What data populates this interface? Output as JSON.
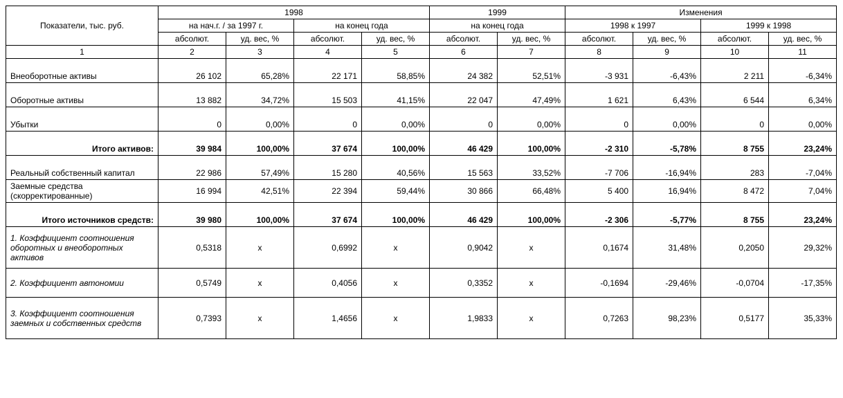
{
  "header": {
    "indicator_label": "Показатели, тыс. руб.",
    "y1998": "1998",
    "y1999": "1999",
    "changes": "Изменения",
    "begin_1997": "на нач.г. / за 1997 г.",
    "end_year": "на конец года",
    "ch_1998_1997": "1998 к 1997",
    "ch_1999_1998": "1999 к 1998",
    "absolute": "абсолют.",
    "ud_ves": "уд. вес, %",
    "cols": [
      "1",
      "2",
      "3",
      "4",
      "5",
      "6",
      "7",
      "8",
      "9",
      "10",
      "11"
    ]
  },
  "rows": {
    "noncurrent": {
      "label": "Внеоборотные активы",
      "c2": "26 102",
      "c3": "65,28%",
      "c4": "22 171",
      "c5": "58,85%",
      "c6": "24 382",
      "c7": "52,51%",
      "c8": "-3 931",
      "c9": "-6,43%",
      "c10": "2 211",
      "c11": "-6,34%"
    },
    "current": {
      "label": "Оборотные активы",
      "c2": "13 882",
      "c3": "34,72%",
      "c4": "15 503",
      "c5": "41,15%",
      "c6": "22 047",
      "c7": "47,49%",
      "c8": "1 621",
      "c9": "6,43%",
      "c10": "6 544",
      "c11": "6,34%"
    },
    "losses": {
      "label": "Убытки",
      "c2": "0",
      "c3": "0,00%",
      "c4": "0",
      "c5": "0,00%",
      "c6": "0",
      "c7": "0,00%",
      "c8": "0",
      "c9": "0,00%",
      "c10": "0",
      "c11": "0,00%"
    },
    "total_assets": {
      "label": "Итого активов:",
      "c2": "39 984",
      "c3": "100,00%",
      "c4": "37 674",
      "c5": "100,00%",
      "c6": "46 429",
      "c7": "100,00%",
      "c8": "-2 310",
      "c9": "-5,78%",
      "c10": "8 755",
      "c11": "23,24%"
    },
    "real_equity": {
      "label": "Реальный собственный капитал",
      "c2": "22 986",
      "c3": "57,49%",
      "c4": "15 280",
      "c5": "40,56%",
      "c6": "15 563",
      "c7": "33,52%",
      "c8": "-7 706",
      "c9": "-16,94%",
      "c10": "283",
      "c11": "-7,04%"
    },
    "borrowed": {
      "label": "Заемные средства (скорректированные)",
      "c2": "16 994",
      "c3": "42,51%",
      "c4": "22 394",
      "c5": "59,44%",
      "c6": "30 866",
      "c7": "66,48%",
      "c8": "5 400",
      "c9": "16,94%",
      "c10": "8 472",
      "c11": "7,04%"
    },
    "total_sources": {
      "label": "Итого источников средств:",
      "c2": "39 980",
      "c3": "100,00%",
      "c4": "37 674",
      "c5": "100,00%",
      "c6": "46 429",
      "c7": "100,00%",
      "c8": "-2 306",
      "c9": "-5,77%",
      "c10": "8 755",
      "c11": "23,24%"
    },
    "coef1": {
      "label": "1. Коэффициент соотношения оборотных и внеоборотных активов",
      "c2": "0,5318",
      "c3": "x",
      "c4": "0,6992",
      "c5": "x",
      "c6": "0,9042",
      "c7": "x",
      "c8": "0,1674",
      "c9": "31,48%",
      "c10": "0,2050",
      "c11": "29,32%"
    },
    "coef2": {
      "label": "2. Коэффициент автономии",
      "c2": "0,5749",
      "c3": "x",
      "c4": "0,4056",
      "c5": "x",
      "c6": "0,3352",
      "c7": "x",
      "c8": "-0,1694",
      "c9": "-29,46%",
      "c10": "-0,0704",
      "c11": "-17,35%"
    },
    "coef3": {
      "label": "3. Коэффициент соотношения заемных и собственных средств",
      "c2": "0,7393",
      "c3": "x",
      "c4": "1,4656",
      "c5": "x",
      "c6": "1,9833",
      "c7": "x",
      "c8": "0,7263",
      "c9": "98,23%",
      "c10": "0,5177",
      "c11": "35,33%"
    }
  }
}
